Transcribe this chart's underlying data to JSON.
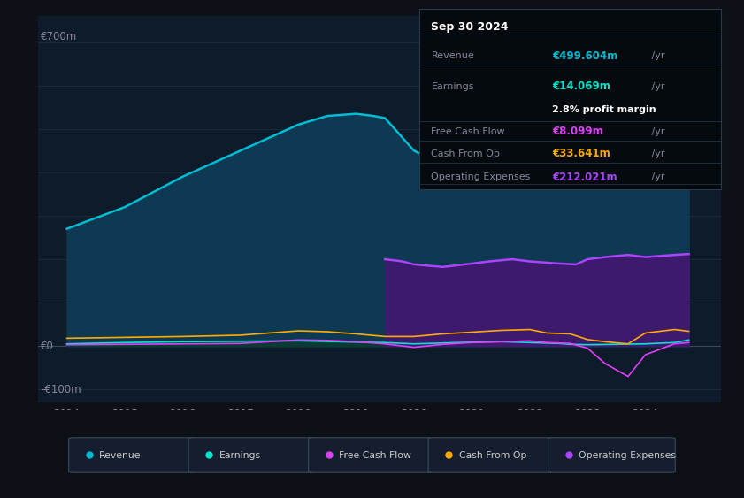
{
  "bg_color": "#0d1117",
  "plot_bg_color": "#0d1b2a",
  "revenue_color": "#00bcd4",
  "revenue_fill": "#0d3a52",
  "earnings_color": "#00e5cc",
  "earnings_fill": "#0a3a30",
  "fcf_color": "#e040fb",
  "cashop_color": "#ffaa00",
  "opex_color": "#aa44ff",
  "opex_fill": "#3d1a6e",
  "legend_bg": "#141e2e",
  "grid_color": "#1e2e3e",
  "xlim": [
    2013.5,
    2025.3
  ],
  "ylim": [
    -130,
    760
  ],
  "xticks": [
    2014,
    2015,
    2016,
    2017,
    2018,
    2019,
    2020,
    2021,
    2022,
    2023,
    2024
  ],
  "revenue_x": [
    2014,
    2014.5,
    2015,
    2015.5,
    2016,
    2016.5,
    2017,
    2017.5,
    2018,
    2018.5,
    2019,
    2019.3,
    2019.5,
    2020,
    2020.3,
    2020.7,
    2021,
    2021.5,
    2022,
    2022.3,
    2022.7,
    2023,
    2023.3,
    2024,
    2024.5,
    2024.75
  ],
  "revenue_y": [
    270,
    295,
    320,
    355,
    390,
    420,
    450,
    480,
    510,
    530,
    535,
    530,
    525,
    450,
    430,
    440,
    455,
    480,
    530,
    570,
    620,
    670,
    695,
    600,
    530,
    500
  ],
  "earnings_x": [
    2014,
    2015,
    2016,
    2017,
    2018,
    2019,
    2019.5,
    2020,
    2020.5,
    2021,
    2021.5,
    2022,
    2022.5,
    2022.7,
    2023,
    2023.5,
    2024,
    2024.5,
    2024.75
  ],
  "earnings_y": [
    5,
    8,
    10,
    11,
    12,
    9,
    8,
    5,
    7,
    9,
    10,
    8,
    6,
    4,
    3,
    4,
    5,
    8,
    14
  ],
  "fcf_x": [
    2014,
    2015,
    2016,
    2017,
    2018,
    2018.5,
    2019,
    2019.5,
    2020,
    2020.5,
    2021,
    2021.5,
    2022,
    2022.3,
    2022.7,
    2023,
    2023.3,
    2023.7,
    2024,
    2024.5,
    2024.75
  ],
  "fcf_y": [
    3,
    4,
    5,
    6,
    14,
    13,
    10,
    5,
    -3,
    4,
    8,
    10,
    12,
    8,
    6,
    -5,
    -40,
    -70,
    -20,
    5,
    8
  ],
  "cashop_x": [
    2014,
    2015,
    2016,
    2017,
    2018,
    2018.5,
    2019,
    2019.5,
    2020,
    2020.5,
    2021,
    2021.5,
    2022,
    2022.3,
    2022.7,
    2023,
    2023.3,
    2023.7,
    2024,
    2024.5,
    2024.75
  ],
  "cashop_y": [
    18,
    20,
    22,
    25,
    35,
    33,
    28,
    22,
    22,
    28,
    32,
    36,
    38,
    30,
    28,
    15,
    10,
    5,
    30,
    38,
    34
  ],
  "opex_x": [
    2019.5,
    2019.8,
    2020,
    2020.5,
    2021,
    2021.3,
    2021.7,
    2022,
    2022.5,
    2022.8,
    2023,
    2023.3,
    2023.7,
    2024,
    2024.5,
    2024.75
  ],
  "opex_y": [
    200,
    195,
    188,
    182,
    190,
    195,
    200,
    195,
    190,
    188,
    200,
    205,
    210,
    205,
    210,
    212
  ],
  "info_data": {
    "date": "Sep 30 2024",
    "revenue_val": "€499.604m",
    "earnings_val": "€14.069m",
    "margin": "2.8%",
    "fcf_val": "€8.099m",
    "cashop_val": "€33.641m",
    "opex_val": "€212.021m"
  }
}
